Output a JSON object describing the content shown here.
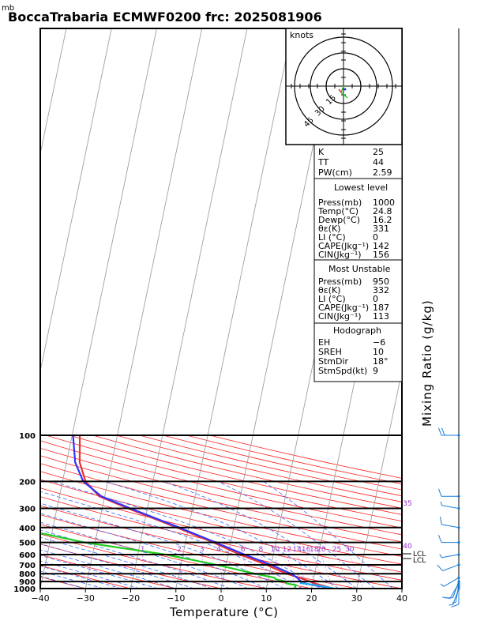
{
  "chart_data": {
    "type": "line",
    "title": "BoccaTrabaria ECMWF0200  frc: 2025081906",
    "y_unit_label": "mb",
    "xlabel": "Temperature (°C)",
    "right_label": "Mixing Ratio  (g/kg)",
    "x_ticks": [
      "−40",
      "−30",
      "−20",
      "−10",
      "0",
      "10",
      "20",
      "30",
      "40"
    ],
    "x_tick_values": [
      -40,
      -30,
      -20,
      -10,
      0,
      10,
      20,
      30,
      40
    ],
    "pressure_levels": [
      1000,
      900,
      800,
      700,
      600,
      500,
      400,
      300,
      200,
      100
    ],
    "pressure_labels": [
      "1000",
      "900",
      "800",
      "700",
      "600",
      "500",
      "400",
      "300",
      "200",
      "100"
    ],
    "xlim": [
      -40,
      40
    ],
    "ylim_mb": [
      1000,
      100
    ],
    "mixing_ratio_labels": [
      "1",
      "2",
      "3",
      "4",
      "6",
      "8",
      "10",
      "12",
      "14",
      "16",
      "18",
      "20",
      "25",
      "30"
    ],
    "mixing_ratio_values": [
      1,
      2,
      3,
      4,
      6,
      8,
      10,
      12,
      14,
      16,
      18,
      20,
      25,
      30
    ],
    "theta_e_labels": [
      "35",
      "40"
    ],
    "lcl_labels": [
      "LCL",
      "LCL"
    ],
    "series": [
      {
        "name": "Temperature",
        "color": "#e83232",
        "p": [
          1000,
          950,
          925,
          900,
          850,
          800,
          700,
          600,
          500,
          400,
          300,
          250,
          200,
          150,
          100
        ],
        "t": [
          24.8,
          21.5,
          19.8,
          18.5,
          15.5,
          12.0,
          6.0,
          -1.5,
          -9.5,
          -20.0,
          -34.0,
          -42.5,
          -48.0,
          -52.5,
          -57.0
        ]
      },
      {
        "name": "Dewpoint",
        "color": "#22cc22",
        "p": [
          1000,
          950,
          925,
          900,
          870,
          850,
          800,
          700,
          600,
          500,
          400,
          300,
          250,
          200,
          150,
          100
        ],
        "t": [
          16.2,
          16.0,
          13.5,
          13.0,
          10.5,
          10.0,
          5.0,
          -5.0,
          -18.0,
          -38.0,
          -56.0,
          -70.0,
          -78.0,
          -83.0,
          -88.0,
          -90.0
        ]
      },
      {
        "name": "Parcel",
        "color": "#3333ff",
        "p": [
          1000,
          930,
          900,
          850,
          800,
          700,
          600,
          500,
          400,
          300,
          250,
          200,
          150,
          100
        ],
        "t": [
          24.8,
          18.0,
          16.5,
          15.0,
          13.0,
          7.0,
          -0.5,
          -9.0,
          -19.5,
          -33.5,
          -42.0,
          -48.5,
          -53.5,
          -58.5
        ]
      },
      {
        "name": "Virtual",
        "color": "#22aaee",
        "p": [
          1000,
          950,
          920
        ],
        "t": [
          25.0,
          20.5,
          16.5
        ]
      }
    ],
    "wind": {
      "p": [
        1000,
        975,
        950,
        925,
        900,
        850,
        700,
        600,
        500,
        400,
        300,
        250,
        100
      ],
      "speed_kt": [
        5,
        10,
        5,
        10,
        10,
        5,
        10,
        5,
        10,
        10,
        5,
        10,
        20
      ],
      "dir_deg": [
        200,
        180,
        190,
        210,
        200,
        240,
        250,
        260,
        270,
        280,
        280,
        270,
        270
      ]
    },
    "hodograph": {
      "unit_label": "knots",
      "ring_labels": [
        "15",
        "30",
        "45"
      ],
      "ring_values": [
        15,
        30,
        45
      ]
    }
  },
  "index_panel": {
    "k_label": "K",
    "k_value": "25",
    "tt_label": "TT",
    "tt_value": "44",
    "pw_label": "PW(cm)",
    "pw_value": "2.59"
  },
  "lowest_level": {
    "header": "Lowest level",
    "rows": [
      {
        "label": "Press(mb)",
        "value": "1000"
      },
      {
        "label": "Temp(°C)",
        "value": "24.8"
      },
      {
        "label": "Dewp(°C)",
        "value": "16.2"
      },
      {
        "label": "θε(K)",
        "value": "331"
      },
      {
        "label": "LI (°C)",
        "value": "0"
      },
      {
        "label": "CAPE(Jkg⁻¹)",
        "value": "142"
      },
      {
        "label": "CIN(Jkg⁻¹)",
        "value": "156"
      }
    ]
  },
  "most_unstable": {
    "header": "Most Unstable",
    "rows": [
      {
        "label": "Press(mb)",
        "value": "950"
      },
      {
        "label": "θε(K)",
        "value": "332"
      },
      {
        "label": "LI (°C)",
        "value": "0"
      },
      {
        "label": "CAPE(Jkg⁻¹)",
        "value": "187"
      },
      {
        "label": "CIN(Jkg⁻¹)",
        "value": "113"
      }
    ]
  },
  "hodograph_panel": {
    "header": "Hodograph",
    "rows": [
      {
        "label": "EH",
        "value": "−6"
      },
      {
        "label": "SREH",
        "value": "10"
      },
      {
        "label": "StmDir",
        "value": "18°"
      },
      {
        "label": "StmSpd(kt)",
        "value": "9"
      }
    ]
  }
}
